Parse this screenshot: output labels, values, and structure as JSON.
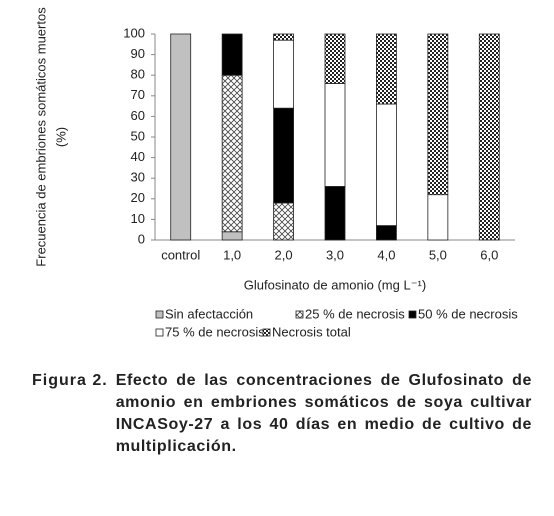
{
  "chart_data": {
    "type": "stacked_bar",
    "y_label": [
      "Frecuencia de embriones somáticos muertos",
      "(%)"
    ],
    "x_label": "Glufosinato de amonio (mg L⁻¹)",
    "categories": [
      "control",
      "1,0",
      "2,0",
      "3,0",
      "4,0",
      "5,0",
      "6,0"
    ],
    "series": [
      {
        "name": "Sin afectacción",
        "color": "#c0c0c0",
        "values": [
          100,
          4,
          0,
          0,
          0,
          0,
          0
        ]
      },
      {
        "name": "25 % de necrosis",
        "color": "#ffffff",
        "pattern": "crosshatch",
        "values": [
          0,
          76,
          18,
          0,
          0,
          0,
          0
        ]
      },
      {
        "name": "50 % de necrosis",
        "color": "#000000",
        "values": [
          0,
          20,
          46,
          26,
          7,
          0,
          0
        ]
      },
      {
        "name": "75 % de necrosis",
        "color": "#ffffff",
        "values": [
          0,
          0,
          33,
          50,
          59,
          22,
          0
        ]
      },
      {
        "name": "Necrosis total",
        "color": "#333333",
        "pattern": "checker",
        "values": [
          0,
          0,
          3,
          24,
          34,
          78,
          100
        ]
      }
    ],
    "ylim": [
      0,
      100
    ],
    "yticks": [
      0,
      10,
      20,
      30,
      40,
      50,
      60,
      70,
      80,
      90,
      100
    ],
    "grid": false
  },
  "caption": {
    "label": "Figura 2.",
    "text": "Efecto de las concentraciones de Glufosinato de amonio en embriones somáticos de soya cultivar INCASoy-27 a los 40 días en medio de cultivo de multiplicación."
  }
}
